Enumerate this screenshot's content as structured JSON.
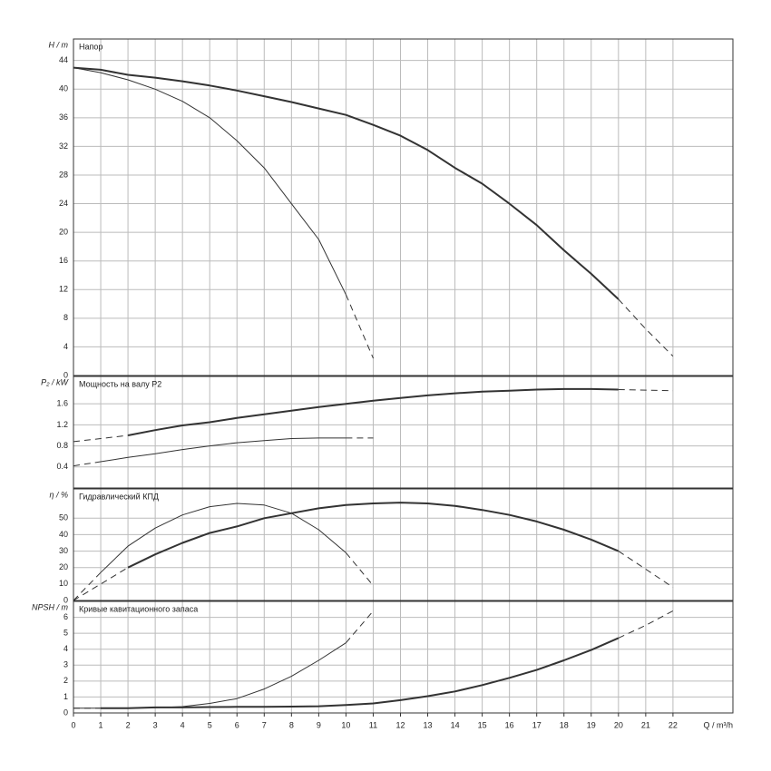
{
  "chart_data": [
    {
      "type": "line",
      "title": "Напор",
      "ylabel": "H / m",
      "x": [
        0,
        1,
        2,
        3,
        4,
        5,
        6,
        7,
        8,
        9,
        10,
        11,
        12,
        13,
        14,
        15,
        16,
        17,
        18,
        19,
        20,
        21,
        22
      ],
      "xlim": [
        0,
        24.2
      ],
      "ylim": [
        0,
        47
      ],
      "yticks": [
        0,
        4,
        8,
        12,
        16,
        20,
        24,
        28,
        32,
        36,
        40,
        44
      ],
      "grid": true,
      "series": [
        {
          "color": "#333333",
          "width": 2,
          "dash": false,
          "values": [
            43,
            42.7,
            42,
            41.6,
            41.1,
            40.5,
            39.8,
            39,
            38.2,
            37.3,
            36.4,
            35,
            33.5,
            31.5,
            29,
            26.8,
            24,
            21,
            17.5,
            14.2,
            10.65,
            null,
            null
          ]
        },
        {
          "color": "#333333",
          "width": 1,
          "dash": true,
          "values": [
            null,
            null,
            null,
            null,
            null,
            null,
            null,
            null,
            null,
            null,
            null,
            null,
            null,
            null,
            null,
            null,
            null,
            null,
            null,
            null,
            10.65,
            6.5,
            2.7
          ]
        },
        {
          "color": "#333333",
          "width": 1,
          "dash": false,
          "values": [
            43,
            42.3,
            41.3,
            40,
            38.3,
            36,
            32.8,
            29,
            24,
            19,
            11.3,
            null,
            null,
            null,
            null,
            null,
            null,
            null,
            null,
            null,
            null,
            null,
            null
          ]
        },
        {
          "color": "#333333",
          "width": 1,
          "dash": true,
          "values": [
            null,
            null,
            null,
            null,
            null,
            null,
            null,
            null,
            null,
            null,
            11.3,
            2.4,
            null,
            null,
            null,
            null,
            null,
            null,
            null,
            null,
            null,
            null,
            null
          ]
        }
      ]
    },
    {
      "type": "line",
      "title": "Мощность на валу P2",
      "ylabel": "P₂ / kW",
      "x": [
        0,
        1,
        2,
        3,
        4,
        5,
        6,
        7,
        8,
        9,
        10,
        11,
        12,
        13,
        14,
        15,
        16,
        17,
        18,
        19,
        20,
        21,
        22
      ],
      "xlim": [
        0,
        24.2
      ],
      "ylim": [
        0,
        2.12
      ],
      "yticks": [
        0.4,
        0.8,
        1.2,
        1.6
      ],
      "grid": true,
      "series": [
        {
          "color": "#333333",
          "width": 1,
          "dash": true,
          "values": [
            0.88,
            0.94,
            1.0,
            null,
            null,
            null,
            null,
            null,
            null,
            null,
            null,
            null,
            null,
            null,
            null,
            null,
            null,
            null,
            null,
            null,
            null,
            null,
            null
          ]
        },
        {
          "color": "#333333",
          "width": 2,
          "dash": false,
          "values": [
            null,
            null,
            1.0,
            1.1,
            1.19,
            1.25,
            1.33,
            1.4,
            1.47,
            1.54,
            1.6,
            1.66,
            1.71,
            1.76,
            1.8,
            1.83,
            1.85,
            1.87,
            1.88,
            1.88,
            1.87,
            null,
            null
          ]
        },
        {
          "color": "#333333",
          "width": 1,
          "dash": true,
          "values": [
            null,
            null,
            null,
            null,
            null,
            null,
            null,
            null,
            null,
            null,
            null,
            null,
            null,
            null,
            null,
            null,
            null,
            null,
            null,
            null,
            1.87,
            1.86,
            1.85
          ]
        },
        {
          "color": "#333333",
          "width": 1,
          "dash": true,
          "values": [
            0.42,
            0.5,
            null,
            null,
            null,
            null,
            null,
            null,
            null,
            null,
            null,
            null,
            null,
            null,
            null,
            null,
            null,
            null,
            null,
            null,
            null,
            null,
            null
          ]
        },
        {
          "color": "#333333",
          "width": 1,
          "dash": false,
          "values": [
            null,
            0.5,
            0.58,
            0.65,
            0.73,
            0.8,
            0.86,
            0.9,
            0.94,
            0.95,
            0.95,
            null,
            null,
            null,
            null,
            null,
            null,
            null,
            null,
            null,
            null,
            null,
            null
          ]
        },
        {
          "color": "#333333",
          "width": 1,
          "dash": true,
          "values": [
            null,
            null,
            null,
            null,
            null,
            null,
            null,
            null,
            null,
            null,
            0.95,
            0.95,
            null,
            null,
            null,
            null,
            null,
            null,
            null,
            null,
            null,
            null,
            null
          ]
        }
      ]
    },
    {
      "type": "line",
      "title": "Гидравлический КПД",
      "ylabel": "η / %",
      "x": [
        0,
        1,
        2,
        3,
        4,
        5,
        6,
        7,
        8,
        9,
        10,
        11,
        12,
        13,
        14,
        15,
        16,
        17,
        18,
        19,
        20,
        21,
        22
      ],
      "xlim": [
        0,
        24.2
      ],
      "ylim": [
        0,
        67.8
      ],
      "yticks": [
        0,
        10,
        20,
        30,
        40,
        50
      ],
      "grid": true,
      "series": [
        {
          "color": "#333333",
          "width": 1,
          "dash": true,
          "values": [
            0,
            10,
            20,
            null,
            null,
            null,
            null,
            null,
            null,
            null,
            null,
            null,
            null,
            null,
            null,
            null,
            null,
            null,
            null,
            null,
            null,
            null,
            null
          ]
        },
        {
          "color": "#333333",
          "width": 2,
          "dash": false,
          "values": [
            null,
            null,
            20,
            28,
            35,
            41,
            45,
            50,
            53,
            56,
            58,
            59,
            59.5,
            59,
            57.5,
            55,
            52,
            48,
            43,
            37,
            30,
            null,
            null
          ]
        },
        {
          "color": "#333333",
          "width": 1,
          "dash": true,
          "values": [
            null,
            null,
            null,
            null,
            null,
            null,
            null,
            null,
            null,
            null,
            null,
            null,
            null,
            null,
            null,
            null,
            null,
            null,
            null,
            null,
            30,
            19,
            8
          ]
        },
        {
          "color": "#333333",
          "width": 1,
          "dash": true,
          "values": [
            0,
            17,
            null,
            null,
            null,
            null,
            null,
            null,
            null,
            null,
            null,
            null,
            null,
            null,
            null,
            null,
            null,
            null,
            null,
            null,
            null,
            null,
            null
          ]
        },
        {
          "color": "#333333",
          "width": 1,
          "dash": false,
          "values": [
            null,
            17,
            33,
            44,
            52,
            57,
            59,
            58,
            53,
            43,
            29,
            null,
            null,
            null,
            null,
            null,
            null,
            null,
            null,
            null,
            null,
            null,
            null
          ]
        },
        {
          "color": "#333333",
          "width": 1,
          "dash": true,
          "values": [
            null,
            null,
            null,
            null,
            null,
            null,
            null,
            null,
            null,
            null,
            29,
            9,
            null,
            null,
            null,
            null,
            null,
            null,
            null,
            null,
            null,
            null,
            null
          ]
        }
      ]
    },
    {
      "type": "line",
      "title": "Кривые кавитационного запаса",
      "ylabel": "NPSH / m",
      "xlabel": "Q / m³/h",
      "x": [
        0,
        1,
        2,
        3,
        4,
        5,
        6,
        7,
        8,
        9,
        10,
        11,
        12,
        13,
        14,
        15,
        16,
        17,
        18,
        19,
        20,
        21,
        22
      ],
      "xlim": [
        0,
        24.2
      ],
      "xticks": [
        0,
        1,
        2,
        3,
        4,
        5,
        6,
        7,
        8,
        9,
        10,
        11,
        12,
        13,
        14,
        15,
        16,
        17,
        18,
        19,
        20,
        21,
        22
      ],
      "ylim": [
        0,
        7
      ],
      "yticks": [
        0,
        1,
        2,
        3,
        4,
        5,
        6
      ],
      "grid": true,
      "series": [
        {
          "color": "#333333",
          "width": 1,
          "dash": true,
          "values": [
            0.3,
            0.3,
            null,
            null,
            null,
            null,
            null,
            null,
            null,
            null,
            null,
            null,
            null,
            null,
            null,
            null,
            null,
            null,
            null,
            null,
            null,
            null,
            null
          ]
        },
        {
          "color": "#333333",
          "width": 2,
          "dash": false,
          "values": [
            null,
            0.3,
            0.3,
            0.35,
            0.35,
            0.37,
            0.38,
            0.38,
            0.4,
            0.42,
            0.5,
            0.6,
            0.8,
            1.05,
            1.35,
            1.75,
            2.2,
            2.7,
            3.3,
            3.95,
            4.7,
            null,
            null
          ]
        },
        {
          "color": "#333333",
          "width": 1,
          "dash": true,
          "values": [
            null,
            null,
            null,
            null,
            null,
            null,
            null,
            null,
            null,
            null,
            null,
            null,
            null,
            null,
            null,
            null,
            null,
            null,
            null,
            null,
            4.7,
            5.5,
            6.4
          ]
        },
        {
          "color": "#333333",
          "width": 1,
          "dash": false,
          "values": [
            0.3,
            0.3,
            0.3,
            0.33,
            0.4,
            0.6,
            0.9,
            1.5,
            2.3,
            3.3,
            4.4,
            null,
            null,
            null,
            null,
            null,
            null,
            null,
            null,
            null,
            null,
            null,
            null
          ]
        },
        {
          "color": "#333333",
          "width": 1,
          "dash": true,
          "values": [
            null,
            null,
            null,
            null,
            null,
            null,
            null,
            null,
            null,
            null,
            4.4,
            6.4,
            null,
            null,
            null,
            null,
            null,
            null,
            null,
            null,
            null,
            null,
            null
          ]
        }
      ]
    }
  ]
}
